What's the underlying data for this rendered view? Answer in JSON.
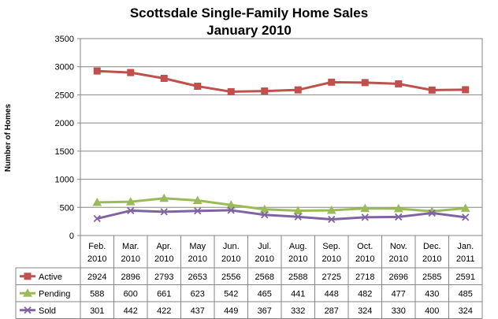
{
  "chart_data": {
    "type": "line",
    "title": "Scottsdale Single-Family Home Sales",
    "subtitle": "January 2010",
    "ylabel": "Number of Homes",
    "xlabel": "",
    "ylim": [
      0,
      3500
    ],
    "yticks": [
      0,
      500,
      1000,
      1500,
      2000,
      2500,
      3000,
      3500
    ],
    "grid": "horizontal",
    "legend": "data-table",
    "categories": [
      [
        "Feb.",
        "2010"
      ],
      [
        "Mar.",
        "2010"
      ],
      [
        "Apr.",
        "2010"
      ],
      [
        "May",
        "2010"
      ],
      [
        "Jun.",
        "2010"
      ],
      [
        "Jul.",
        "2010"
      ],
      [
        "Aug.",
        "2010"
      ],
      [
        "Sep.",
        "2010"
      ],
      [
        "Oct.",
        "2010"
      ],
      [
        "Nov.",
        "2010"
      ],
      [
        "Dec.",
        "2010"
      ],
      [
        "Jan.",
        "2011"
      ]
    ],
    "series": [
      {
        "name": "Active",
        "color": "#c0504d",
        "marker": "square",
        "values": [
          2924,
          2896,
          2793,
          2653,
          2556,
          2568,
          2588,
          2725,
          2718,
          2696,
          2585,
          2591
        ]
      },
      {
        "name": "Pending",
        "color": "#9bbb59",
        "marker": "triangle",
        "values": [
          588,
          600,
          661,
          623,
          542,
          465,
          441,
          448,
          482,
          477,
          430,
          485
        ]
      },
      {
        "name": "Sold",
        "color": "#8064a2",
        "marker": "x",
        "values": [
          301,
          442,
          422,
          437,
          449,
          367,
          332,
          287,
          324,
          330,
          400,
          324
        ]
      }
    ]
  }
}
